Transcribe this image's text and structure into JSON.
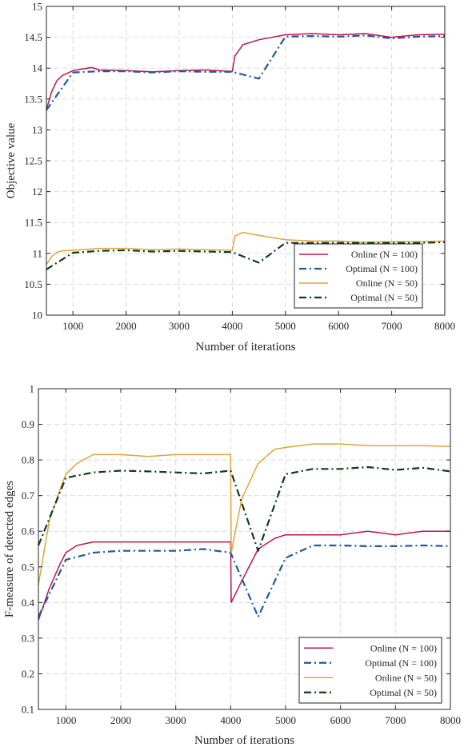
{
  "chart_data": [
    {
      "type": "line",
      "title": "",
      "xlabel": "Number of iterations",
      "ylabel": "Objective value",
      "xlim": [
        500,
        8000
      ],
      "ylim": [
        10,
        15
      ],
      "xticks": [
        1000,
        2000,
        3000,
        4000,
        5000,
        6000,
        7000,
        8000
      ],
      "yticks": [
        10,
        10.5,
        11,
        11.5,
        12,
        12.5,
        13,
        13.5,
        14,
        14.5,
        15
      ],
      "grid": true,
      "legend_position": "lower-right",
      "series": [
        {
          "name": "Online (N = 100)",
          "color": "#c0144c",
          "style": "solid",
          "x": [
            500,
            600,
            700,
            800,
            900,
            1000,
            1200,
            1350,
            1500,
            2000,
            2500,
            3000,
            3500,
            3950,
            4000,
            4050,
            4200,
            4500,
            5000,
            5500,
            6000,
            6500,
            7000,
            7500,
            8000
          ],
          "y": [
            13.33,
            13.62,
            13.8,
            13.88,
            13.92,
            13.96,
            13.99,
            14.01,
            13.97,
            13.96,
            13.94,
            13.96,
            13.97,
            13.95,
            13.95,
            14.2,
            14.38,
            14.46,
            14.54,
            14.56,
            14.54,
            14.56,
            14.5,
            14.54,
            14.55
          ]
        },
        {
          "name": "Optimal (N = 100)",
          "color": "#1f5a9c",
          "style": "dashdot",
          "x": [
            500,
            1000,
            1500,
            2000,
            2500,
            3000,
            3500,
            4000,
            4500,
            5000,
            5500,
            6000,
            6500,
            7000,
            7500,
            8000
          ],
          "y": [
            13.32,
            13.93,
            13.95,
            13.95,
            13.93,
            13.95,
            13.94,
            13.94,
            13.83,
            14.51,
            14.52,
            14.51,
            14.53,
            14.48,
            14.51,
            14.52
          ]
        },
        {
          "name": "Online (N = 50)",
          "color": "#e0a43a",
          "style": "solid",
          "x": [
            500,
            600,
            700,
            800,
            1000,
            1500,
            2000,
            2500,
            3000,
            3500,
            3950,
            4000,
            4050,
            4200,
            4500,
            5000,
            5500,
            6000,
            6500,
            7000,
            7500,
            8000
          ],
          "y": [
            10.82,
            10.95,
            11.02,
            11.04,
            11.05,
            11.08,
            11.08,
            11.06,
            11.07,
            11.06,
            11.05,
            11.05,
            11.28,
            11.34,
            11.29,
            11.22,
            11.2,
            11.2,
            11.18,
            11.19,
            11.19,
            11.2
          ]
        },
        {
          "name": "Optimal (N = 50)",
          "color": "#0f3a1f",
          "style": "dashdot",
          "x": [
            500,
            1000,
            1500,
            2000,
            2500,
            3000,
            3500,
            4000,
            4500,
            5000,
            5500,
            6000,
            6500,
            7000,
            7500,
            8000
          ],
          "y": [
            10.74,
            11.01,
            11.04,
            11.05,
            11.03,
            11.04,
            11.03,
            11.02,
            10.85,
            11.17,
            11.17,
            11.17,
            11.17,
            11.17,
            11.17,
            11.18
          ]
        }
      ]
    },
    {
      "type": "line",
      "title": "",
      "xlabel": "Number of iterations",
      "ylabel": "F-measure of detected edges",
      "xlim": [
        500,
        8000
      ],
      "ylim": [
        0.1,
        1
      ],
      "xticks": [
        1000,
        2000,
        3000,
        4000,
        5000,
        6000,
        7000,
        8000
      ],
      "yticks": [
        0.1,
        0.2,
        0.3,
        0.4,
        0.5,
        0.6,
        0.7,
        0.8,
        0.9,
        1
      ],
      "grid": true,
      "legend_position": "lower-right",
      "series": [
        {
          "name": "Online (N = 100)",
          "color": "#c0144c",
          "style": "solid",
          "x": [
            500,
            700,
            900,
            1000,
            1200,
            1500,
            2000,
            2500,
            3000,
            3500,
            3990,
            4000,
            4010,
            4200,
            4500,
            4800,
            5000,
            5500,
            6000,
            6500,
            7000,
            7500,
            8000
          ],
          "y": [
            0.35,
            0.44,
            0.51,
            0.54,
            0.56,
            0.57,
            0.57,
            0.57,
            0.57,
            0.57,
            0.57,
            0.57,
            0.4,
            0.46,
            0.55,
            0.58,
            0.59,
            0.59,
            0.59,
            0.6,
            0.59,
            0.6,
            0.6
          ]
        },
        {
          "name": "Optimal (N = 100)",
          "color": "#1f5a9c",
          "style": "dashdot",
          "x": [
            500,
            1000,
            1500,
            2000,
            2500,
            3000,
            3500,
            4000,
            4500,
            5000,
            5500,
            6000,
            6500,
            7000,
            7500,
            8000
          ],
          "y": [
            0.36,
            0.52,
            0.54,
            0.545,
            0.545,
            0.545,
            0.55,
            0.54,
            0.36,
            0.525,
            0.56,
            0.56,
            0.558,
            0.558,
            0.56,
            0.558
          ]
        },
        {
          "name": "Online (N = 50)",
          "color": "#e0a43a",
          "style": "solid",
          "x": [
            500,
            700,
            900,
            1000,
            1200,
            1500,
            2000,
            2500,
            3000,
            3500,
            3990,
            4000,
            4010,
            4200,
            4500,
            4800,
            5000,
            5500,
            6000,
            6500,
            7000,
            7500,
            8000
          ],
          "y": [
            0.45,
            0.63,
            0.72,
            0.76,
            0.79,
            0.815,
            0.815,
            0.81,
            0.815,
            0.815,
            0.815,
            0.815,
            0.54,
            0.69,
            0.79,
            0.83,
            0.835,
            0.845,
            0.845,
            0.84,
            0.84,
            0.84,
            0.838
          ]
        },
        {
          "name": "Optimal (N = 50)",
          "color": "#0f3a1f",
          "style": "dashdot",
          "x": [
            500,
            1000,
            1500,
            2000,
            2500,
            3000,
            3500,
            4000,
            4500,
            5000,
            5500,
            6000,
            6500,
            7000,
            7500,
            8000
          ],
          "y": [
            0.56,
            0.75,
            0.765,
            0.77,
            0.768,
            0.765,
            0.762,
            0.77,
            0.545,
            0.76,
            0.775,
            0.775,
            0.78,
            0.772,
            0.778,
            0.768
          ]
        }
      ]
    }
  ]
}
